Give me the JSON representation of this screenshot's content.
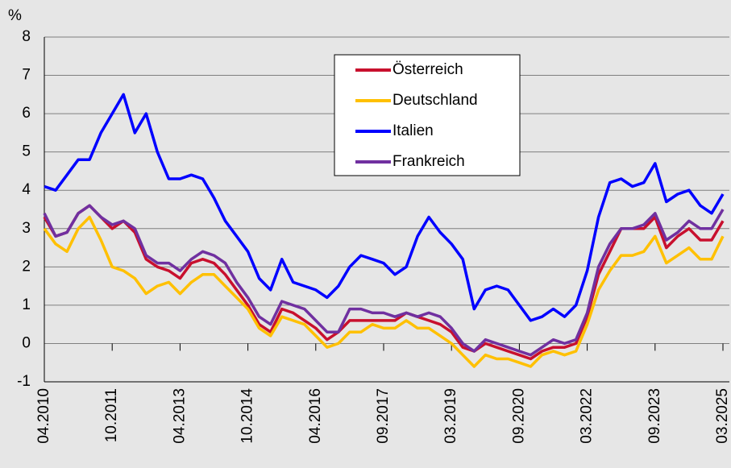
{
  "chart_data": {
    "type": "line",
    "ylabel": "%",
    "categories": [
      "04.2010",
      null,
      null,
      null,
      null,
      null,
      "10.2011",
      null,
      null,
      null,
      null,
      null,
      "04.2013",
      null,
      null,
      null,
      null,
      null,
      "10.2014",
      null,
      null,
      null,
      null,
      null,
      "04.2016",
      null,
      null,
      null,
      null,
      null,
      "09.2017",
      null,
      null,
      null,
      null,
      null,
      "03.2019",
      null,
      null,
      null,
      null,
      null,
      "09.2020",
      null,
      null,
      null,
      null,
      null,
      "03.2022",
      null,
      null,
      null,
      null,
      null,
      "09.2023",
      null,
      null,
      null,
      null,
      null,
      "03.2025"
    ],
    "series": [
      {
        "name": "Österreich",
        "color": "#c8102e",
        "values": [
          3.3,
          2.8,
          2.9,
          3.4,
          3.6,
          3.3,
          3.0,
          3.2,
          2.9,
          2.2,
          2.0,
          1.9,
          1.7,
          2.1,
          2.2,
          2.1,
          1.8,
          1.4,
          1.0,
          0.5,
          0.3,
          0.9,
          0.8,
          0.6,
          0.4,
          0.1,
          0.3,
          0.6,
          0.6,
          0.6,
          0.6,
          0.6,
          0.8,
          0.7,
          0.6,
          0.5,
          0.3,
          -0.1,
          -0.2,
          0.0,
          -0.1,
          -0.2,
          -0.3,
          -0.4,
          -0.2,
          -0.1,
          -0.1,
          0.0,
          0.7,
          1.8,
          2.4,
          3.0,
          3.0,
          3.0,
          3.3,
          2.5,
          2.8,
          3.0,
          2.7,
          2.7,
          3.2
        ]
      },
      {
        "name": "Deutschland",
        "color": "#ffc000",
        "values": [
          3.0,
          2.6,
          2.4,
          3.0,
          3.3,
          2.7,
          2.0,
          1.9,
          1.7,
          1.3,
          1.5,
          1.6,
          1.3,
          1.6,
          1.8,
          1.8,
          1.5,
          1.2,
          0.9,
          0.4,
          0.2,
          0.7,
          0.6,
          0.5,
          0.2,
          -0.1,
          0.0,
          0.3,
          0.3,
          0.5,
          0.4,
          0.4,
          0.6,
          0.4,
          0.4,
          0.2,
          0.0,
          -0.3,
          -0.6,
          -0.3,
          -0.4,
          -0.4,
          -0.5,
          -0.6,
          -0.3,
          -0.2,
          -0.3,
          -0.2,
          0.5,
          1.4,
          1.9,
          2.3,
          2.3,
          2.4,
          2.8,
          2.1,
          2.3,
          2.5,
          2.2,
          2.2,
          2.8
        ]
      },
      {
        "name": "Italien",
        "color": "#0000ff",
        "values": [
          4.1,
          4.0,
          4.4,
          4.8,
          4.8,
          5.5,
          6.0,
          6.5,
          5.5,
          6.0,
          5.0,
          4.3,
          4.3,
          4.4,
          4.3,
          3.8,
          3.2,
          2.8,
          2.4,
          1.7,
          1.4,
          2.2,
          1.6,
          1.5,
          1.4,
          1.2,
          1.5,
          2.0,
          2.3,
          2.2,
          2.1,
          1.8,
          2.0,
          2.8,
          3.3,
          2.9,
          2.6,
          2.2,
          0.9,
          1.4,
          1.5,
          1.4,
          1.0,
          0.6,
          0.7,
          0.9,
          0.7,
          1.0,
          1.9,
          3.3,
          4.2,
          4.3,
          4.1,
          4.2,
          4.7,
          3.7,
          3.9,
          4.0,
          3.6,
          3.4,
          3.9
        ]
      },
      {
        "name": "Frankreich",
        "color": "#7030a0",
        "values": [
          3.4,
          2.8,
          2.9,
          3.4,
          3.6,
          3.3,
          3.1,
          3.2,
          3.0,
          2.3,
          2.1,
          2.1,
          1.9,
          2.2,
          2.4,
          2.3,
          2.1,
          1.6,
          1.2,
          0.7,
          0.5,
          1.1,
          1.0,
          0.9,
          0.6,
          0.3,
          0.3,
          0.9,
          0.9,
          0.8,
          0.8,
          0.7,
          0.8,
          0.7,
          0.8,
          0.7,
          0.4,
          0.0,
          -0.2,
          0.1,
          0.0,
          -0.1,
          -0.2,
          -0.3,
          -0.1,
          0.1,
          0.0,
          0.1,
          0.8,
          2.0,
          2.6,
          3.0,
          3.0,
          3.1,
          3.4,
          2.7,
          2.9,
          3.2,
          3.0,
          3.0,
          3.5
        ]
      }
    ],
    "ylim": [
      -1,
      8
    ],
    "yticks": [
      -1,
      0,
      1,
      2,
      3,
      4,
      5,
      6,
      7,
      8
    ],
    "grid": true,
    "legend": "top-center"
  }
}
